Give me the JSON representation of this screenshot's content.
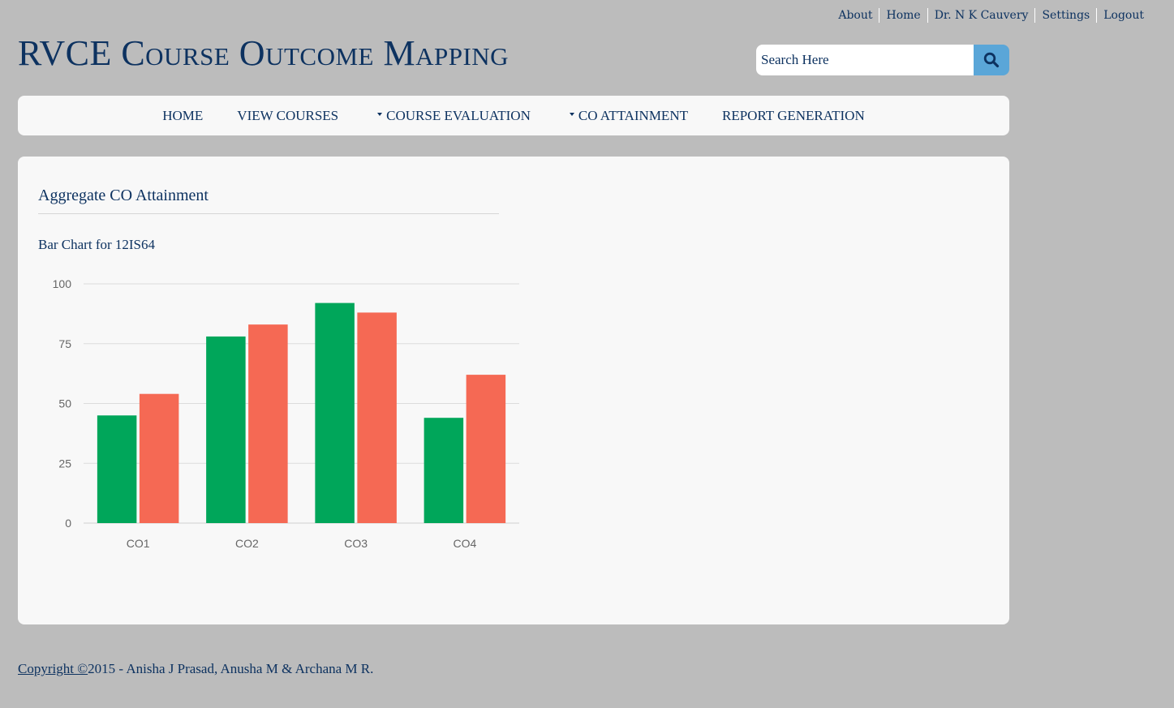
{
  "top_links": [
    "About",
    "Home",
    "Dr. N K Cauvery",
    "Settings",
    "Logout"
  ],
  "site_title": "RVCE Course Outcome Mapping",
  "search": {
    "placeholder": "Search Here",
    "icon": "search-icon"
  },
  "nav": {
    "home": "HOME",
    "view_courses": "VIEW COURSES",
    "course_evaluation": "COURSE EVALUATION",
    "co_attainment": "CO ATTAINMENT",
    "report_generation": "REPORT GENERATION"
  },
  "panel": {
    "heading": "Aggregate CO Attainment",
    "chart_heading": "Bar Chart for 12IS64"
  },
  "chart_data": {
    "type": "bar",
    "categories": [
      "CO1",
      "CO2",
      "CO3",
      "CO4"
    ],
    "series": [
      {
        "color": "#00a65a",
        "values": [
          45,
          78,
          92,
          44
        ]
      },
      {
        "color": "#f56954",
        "values": [
          54,
          83,
          88,
          62
        ]
      }
    ],
    "ylim": [
      0,
      100
    ],
    "yticks": [
      0,
      25,
      50,
      75,
      100
    ],
    "grid": true
  },
  "footer": {
    "link_text": "Copyright ©",
    "text": "2015 - Anisha J Prasad, Anusha M & Archana M R."
  },
  "colors": {
    "primary_text": "#0d3260",
    "background": "#bcbcbc",
    "panel": "#f8f8f8",
    "search_button": "#5aa6d8"
  }
}
